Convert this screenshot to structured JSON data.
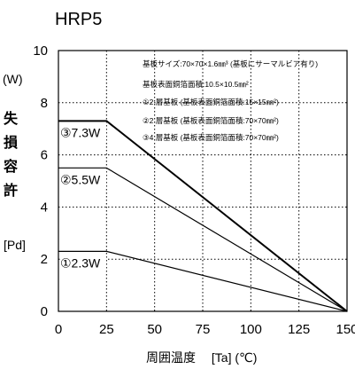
{
  "chart_data": {
    "type": "line",
    "title": "HRP5",
    "xlabel": "周囲温度　 [Ta] (℃)",
    "ylabel": "許容損失 [Pd] (W)",
    "ylabel_chars": [
      "許",
      "容",
      "損",
      "失"
    ],
    "ylabel_bracket": "[Pd]",
    "ylabel_unit": "(W)",
    "xlim": [
      0,
      150
    ],
    "ylim": [
      0,
      10
    ],
    "x_ticks": [
      0,
      25,
      50,
      75,
      100,
      125,
      150
    ],
    "y_ticks": [
      0,
      2,
      4,
      6,
      8,
      10
    ],
    "grid": true,
    "series": [
      {
        "name": "①2.3W",
        "x": [
          0,
          25,
          150
        ],
        "y": [
          2.3,
          2.3,
          0
        ],
        "heavy": false
      },
      {
        "name": "②5.5W",
        "x": [
          0,
          25,
          150
        ],
        "y": [
          5.5,
          5.5,
          0
        ],
        "heavy": false
      },
      {
        "name": "③7.3W",
        "x": [
          0,
          25,
          150
        ],
        "y": [
          7.3,
          7.3,
          0
        ],
        "heavy": true
      }
    ],
    "notes": [
      "基板サイズ:70×70×1.6㎜³ (基板にサーマルビア有り)",
      "基板表面銅箔面積:10.5×10.5㎜²",
      "①2 層基板 (基板表面銅箔面積:15×15㎜²)",
      "②2 層基板 (基板表面銅箔面積:70×70㎜²)",
      "③4 層基板 (基板表面銅箔面積:70×70㎜²)"
    ],
    "colors": {
      "line": "#000000",
      "grid": "#000000",
      "background": "#ffffff"
    }
  }
}
